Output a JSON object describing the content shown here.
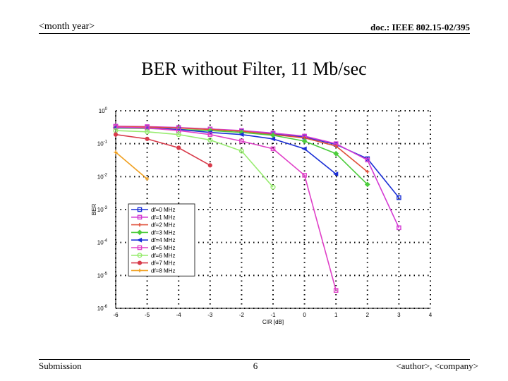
{
  "header": {
    "left": "<month year>",
    "right": "doc.: IEEE 802.15-02/395"
  },
  "slide": {
    "title": "BER without Filter, 11 Mb/sec"
  },
  "footer": {
    "left": "Submission",
    "page": "6",
    "right": "<author>, <company>"
  },
  "chart_data": {
    "type": "line",
    "xlabel": "CIR [dB]",
    "ylabel": "BER",
    "xlim": [
      -6,
      4
    ],
    "ylim_log10": [
      -6,
      0
    ],
    "y_scale": "log",
    "x_ticks": [
      "-6",
      "-5",
      "-4",
      "-3",
      "-2",
      "-1",
      "0",
      "1",
      "2",
      "3",
      "4"
    ],
    "y_ticks": [
      {
        "base": "10",
        "exp": "0"
      },
      {
        "base": "10",
        "exp": "-1"
      },
      {
        "base": "10",
        "exp": "-2"
      },
      {
        "base": "10",
        "exp": "-3"
      },
      {
        "base": "10",
        "exp": "-4"
      },
      {
        "base": "10",
        "exp": "-5"
      },
      {
        "base": "10",
        "exp": "-6"
      }
    ],
    "grid": "dotted",
    "legend_position": "lower-left",
    "series": [
      {
        "name": "df=0 MHz",
        "color": "#1a2fd6",
        "marker": "square",
        "x": [
          -6,
          -5,
          -4,
          -3,
          -2,
          -1,
          0,
          1,
          2,
          3
        ],
        "y": [
          0.33,
          0.32,
          0.3,
          0.28,
          0.24,
          0.2,
          0.16,
          0.095,
          0.035,
          0.0023
        ]
      },
      {
        "name": "df=1 MHz",
        "color": "#d43ad4",
        "marker": "square",
        "x": [
          -6,
          -5,
          -4,
          -3,
          -2,
          -1,
          0,
          1,
          2,
          3
        ],
        "y": [
          0.34,
          0.33,
          0.31,
          0.28,
          0.25,
          0.21,
          0.17,
          0.1,
          0.032,
          0.00028
        ]
      },
      {
        "name": "df=2 MHz",
        "color": "#e0503a",
        "marker": "plus",
        "x": [
          -6,
          -5,
          -4,
          -3,
          -2,
          -1,
          0,
          1,
          2
        ],
        "y": [
          0.33,
          0.32,
          0.3,
          0.27,
          0.24,
          0.19,
          0.15,
          0.085,
          0.014
        ]
      },
      {
        "name": "df=3 MHz",
        "color": "#4ccc3c",
        "marker": "diamond",
        "x": [
          -6,
          -5,
          -4,
          -3,
          -2,
          -1,
          0,
          1,
          2
        ],
        "y": [
          0.3,
          0.29,
          0.27,
          0.25,
          0.22,
          0.18,
          0.12,
          0.05,
          0.0058
        ]
      },
      {
        "name": "df=4 MHz",
        "color": "#1a2fd6",
        "marker": "triangle-left",
        "x": [
          -6,
          -5,
          -4,
          -3,
          -2,
          -1,
          0,
          1
        ],
        "y": [
          0.31,
          0.3,
          0.27,
          0.22,
          0.19,
          0.14,
          0.07,
          0.012
        ]
      },
      {
        "name": "df=5 MHz",
        "color": "#e040c8",
        "marker": "square",
        "x": [
          -6,
          -5,
          -4,
          -3,
          -2,
          -1,
          0,
          1
        ],
        "y": [
          0.32,
          0.3,
          0.25,
          0.19,
          0.12,
          0.07,
          0.011,
          3.5e-06
        ]
      },
      {
        "name": "df=6 MHz",
        "color": "#98ec70",
        "marker": "circle",
        "x": [
          -6,
          -5,
          -4,
          -3,
          -2,
          -1
        ],
        "y": [
          0.25,
          0.23,
          0.19,
          0.13,
          0.06,
          0.0048
        ]
      },
      {
        "name": "df=7 MHz",
        "color": "#d83a4a",
        "marker": "dot",
        "x": [
          -6,
          -5,
          -4,
          -3
        ],
        "y": [
          0.19,
          0.14,
          0.075,
          0.022
        ]
      },
      {
        "name": "df=8 MHz",
        "color": "#f0a020",
        "marker": "plus",
        "x": [
          -6,
          -5
        ],
        "y": [
          0.055,
          0.0085
        ]
      }
    ]
  }
}
